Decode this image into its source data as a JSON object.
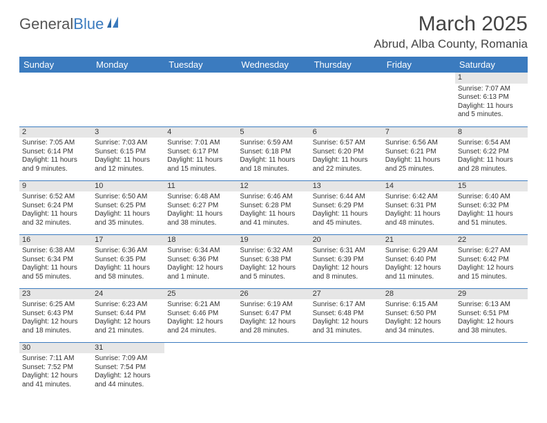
{
  "logo": {
    "part1": "General",
    "part2": "Blue"
  },
  "title": "March 2025",
  "location": "Abrud, Alba County, Romania",
  "day_headers": [
    "Sunday",
    "Monday",
    "Tuesday",
    "Wednesday",
    "Thursday",
    "Friday",
    "Saturday"
  ],
  "colors": {
    "header_bg": "#3b7bbf",
    "header_text": "#ffffff",
    "cell_border": "#3b7bbf",
    "daynum_bg": "#e6e6e6",
    "text": "#333333",
    "background": "#ffffff"
  },
  "grid": [
    [
      null,
      null,
      null,
      null,
      null,
      null,
      {
        "n": "1",
        "sunrise": "Sunrise: 7:07 AM",
        "sunset": "Sunset: 6:13 PM",
        "daylight": "Daylight: 11 hours and 5 minutes."
      }
    ],
    [
      {
        "n": "2",
        "sunrise": "Sunrise: 7:05 AM",
        "sunset": "Sunset: 6:14 PM",
        "daylight": "Daylight: 11 hours and 9 minutes."
      },
      {
        "n": "3",
        "sunrise": "Sunrise: 7:03 AM",
        "sunset": "Sunset: 6:15 PM",
        "daylight": "Daylight: 11 hours and 12 minutes."
      },
      {
        "n": "4",
        "sunrise": "Sunrise: 7:01 AM",
        "sunset": "Sunset: 6:17 PM",
        "daylight": "Daylight: 11 hours and 15 minutes."
      },
      {
        "n": "5",
        "sunrise": "Sunrise: 6:59 AM",
        "sunset": "Sunset: 6:18 PM",
        "daylight": "Daylight: 11 hours and 18 minutes."
      },
      {
        "n": "6",
        "sunrise": "Sunrise: 6:57 AM",
        "sunset": "Sunset: 6:20 PM",
        "daylight": "Daylight: 11 hours and 22 minutes."
      },
      {
        "n": "7",
        "sunrise": "Sunrise: 6:56 AM",
        "sunset": "Sunset: 6:21 PM",
        "daylight": "Daylight: 11 hours and 25 minutes."
      },
      {
        "n": "8",
        "sunrise": "Sunrise: 6:54 AM",
        "sunset": "Sunset: 6:22 PM",
        "daylight": "Daylight: 11 hours and 28 minutes."
      }
    ],
    [
      {
        "n": "9",
        "sunrise": "Sunrise: 6:52 AM",
        "sunset": "Sunset: 6:24 PM",
        "daylight": "Daylight: 11 hours and 32 minutes."
      },
      {
        "n": "10",
        "sunrise": "Sunrise: 6:50 AM",
        "sunset": "Sunset: 6:25 PM",
        "daylight": "Daylight: 11 hours and 35 minutes."
      },
      {
        "n": "11",
        "sunrise": "Sunrise: 6:48 AM",
        "sunset": "Sunset: 6:27 PM",
        "daylight": "Daylight: 11 hours and 38 minutes."
      },
      {
        "n": "12",
        "sunrise": "Sunrise: 6:46 AM",
        "sunset": "Sunset: 6:28 PM",
        "daylight": "Daylight: 11 hours and 41 minutes."
      },
      {
        "n": "13",
        "sunrise": "Sunrise: 6:44 AM",
        "sunset": "Sunset: 6:29 PM",
        "daylight": "Daylight: 11 hours and 45 minutes."
      },
      {
        "n": "14",
        "sunrise": "Sunrise: 6:42 AM",
        "sunset": "Sunset: 6:31 PM",
        "daylight": "Daylight: 11 hours and 48 minutes."
      },
      {
        "n": "15",
        "sunrise": "Sunrise: 6:40 AM",
        "sunset": "Sunset: 6:32 PM",
        "daylight": "Daylight: 11 hours and 51 minutes."
      }
    ],
    [
      {
        "n": "16",
        "sunrise": "Sunrise: 6:38 AM",
        "sunset": "Sunset: 6:34 PM",
        "daylight": "Daylight: 11 hours and 55 minutes."
      },
      {
        "n": "17",
        "sunrise": "Sunrise: 6:36 AM",
        "sunset": "Sunset: 6:35 PM",
        "daylight": "Daylight: 11 hours and 58 minutes."
      },
      {
        "n": "18",
        "sunrise": "Sunrise: 6:34 AM",
        "sunset": "Sunset: 6:36 PM",
        "daylight": "Daylight: 12 hours and 1 minute."
      },
      {
        "n": "19",
        "sunrise": "Sunrise: 6:32 AM",
        "sunset": "Sunset: 6:38 PM",
        "daylight": "Daylight: 12 hours and 5 minutes."
      },
      {
        "n": "20",
        "sunrise": "Sunrise: 6:31 AM",
        "sunset": "Sunset: 6:39 PM",
        "daylight": "Daylight: 12 hours and 8 minutes."
      },
      {
        "n": "21",
        "sunrise": "Sunrise: 6:29 AM",
        "sunset": "Sunset: 6:40 PM",
        "daylight": "Daylight: 12 hours and 11 minutes."
      },
      {
        "n": "22",
        "sunrise": "Sunrise: 6:27 AM",
        "sunset": "Sunset: 6:42 PM",
        "daylight": "Daylight: 12 hours and 15 minutes."
      }
    ],
    [
      {
        "n": "23",
        "sunrise": "Sunrise: 6:25 AM",
        "sunset": "Sunset: 6:43 PM",
        "daylight": "Daylight: 12 hours and 18 minutes."
      },
      {
        "n": "24",
        "sunrise": "Sunrise: 6:23 AM",
        "sunset": "Sunset: 6:44 PM",
        "daylight": "Daylight: 12 hours and 21 minutes."
      },
      {
        "n": "25",
        "sunrise": "Sunrise: 6:21 AM",
        "sunset": "Sunset: 6:46 PM",
        "daylight": "Daylight: 12 hours and 24 minutes."
      },
      {
        "n": "26",
        "sunrise": "Sunrise: 6:19 AM",
        "sunset": "Sunset: 6:47 PM",
        "daylight": "Daylight: 12 hours and 28 minutes."
      },
      {
        "n": "27",
        "sunrise": "Sunrise: 6:17 AM",
        "sunset": "Sunset: 6:48 PM",
        "daylight": "Daylight: 12 hours and 31 minutes."
      },
      {
        "n": "28",
        "sunrise": "Sunrise: 6:15 AM",
        "sunset": "Sunset: 6:50 PM",
        "daylight": "Daylight: 12 hours and 34 minutes."
      },
      {
        "n": "29",
        "sunrise": "Sunrise: 6:13 AM",
        "sunset": "Sunset: 6:51 PM",
        "daylight": "Daylight: 12 hours and 38 minutes."
      }
    ],
    [
      {
        "n": "30",
        "sunrise": "Sunrise: 7:11 AM",
        "sunset": "Sunset: 7:52 PM",
        "daylight": "Daylight: 12 hours and 41 minutes."
      },
      {
        "n": "31",
        "sunrise": "Sunrise: 7:09 AM",
        "sunset": "Sunset: 7:54 PM",
        "daylight": "Daylight: 12 hours and 44 minutes."
      },
      null,
      null,
      null,
      null,
      null
    ]
  ]
}
